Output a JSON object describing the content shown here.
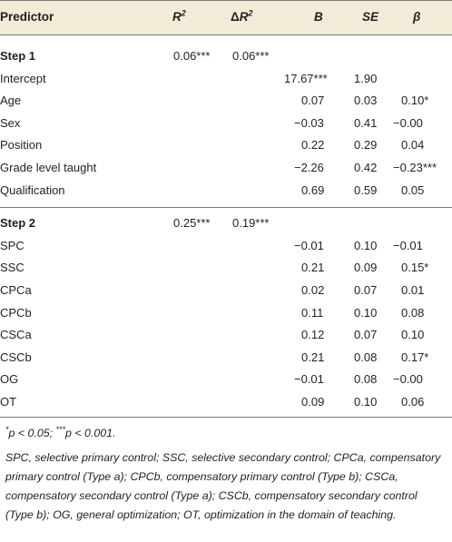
{
  "header": {
    "predictor": "Predictor",
    "r2": "R",
    "r2_sup": "2",
    "dr2_prefix": "Δ",
    "dr2": "R",
    "dr2_sup": "2",
    "b": "B",
    "se": "SE",
    "beta": "β"
  },
  "step1": {
    "label": "Step 1",
    "r2": "0.06***",
    "dr2": "0.06***",
    "rows": [
      {
        "predictor": "Intercept",
        "b": "17.67***",
        "se": "1.90",
        "beta": ""
      },
      {
        "predictor": "Age",
        "b": "0.07",
        "se": "0.03",
        "beta": "0.10*"
      },
      {
        "predictor": "Sex",
        "b": "−0.03",
        "se": "0.41",
        "beta": "−0.00"
      },
      {
        "predictor": "Position",
        "b": "0.22",
        "se": "0.29",
        "beta": "0.04"
      },
      {
        "predictor": "Grade level taught",
        "b": "−2.26",
        "se": "0.42",
        "beta": "−0.23***"
      },
      {
        "predictor": "Qualification",
        "b": "0.69",
        "se": "0.59",
        "beta": "0.05"
      }
    ]
  },
  "step2": {
    "label": "Step 2",
    "r2": "0.25***",
    "dr2": "0.19***",
    "rows": [
      {
        "predictor": "SPC",
        "b": "−0.01",
        "se": "0.10",
        "beta": "−0.01"
      },
      {
        "predictor": "SSC",
        "b": "0.21",
        "se": "0.09",
        "beta": "0.15*"
      },
      {
        "predictor": "CPCa",
        "b": "0.02",
        "se": "0.07",
        "beta": "0.01"
      },
      {
        "predictor": "CPCb",
        "b": "0.11",
        "se": "0.10",
        "beta": "0.08"
      },
      {
        "predictor": "CSCa",
        "b": "0.12",
        "se": "0.07",
        "beta": "0.10"
      },
      {
        "predictor": "CSCb",
        "b": "0.21",
        "se": "0.08",
        "beta": "0.17*"
      },
      {
        "predictor": "OG",
        "b": "−0.01",
        "se": "0.08",
        "beta": "−0.00"
      },
      {
        "predictor": "OT",
        "b": "0.09",
        "se": "0.10",
        "beta": "0.06"
      }
    ]
  },
  "notes": {
    "sig_star1": "*",
    "sig_text1": "p < 0.05; ",
    "sig_star3": "***",
    "sig_text3": "p < 0.001.",
    "abbreviations": "SPC, selective primary control; SSC, selective secondary control; CPCa, compensatory primary control (Type a); CPCb, compensatory primary control (Type b); CSCa, compensatory secondary control (Type a); CSCb, compensatory secondary control (Type b); OG, general optimization; OT, optimization in the domain of teaching."
  }
}
